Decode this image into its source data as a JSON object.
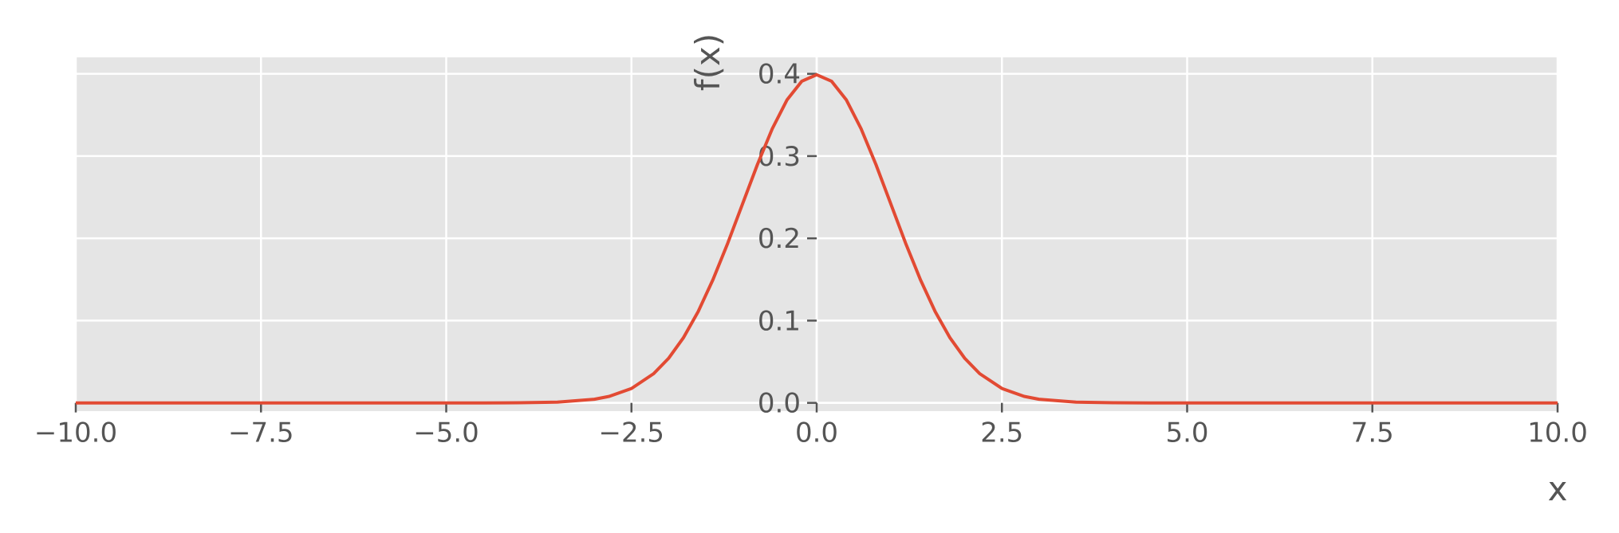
{
  "chart_data": {
    "type": "line",
    "title": "",
    "xlabel": "x",
    "ylabel": "f(x)",
    "xlim": [
      -10,
      10
    ],
    "ylim": [
      -0.01,
      0.42
    ],
    "xticks": [
      -10,
      -7.5,
      -5,
      -2.5,
      0,
      2.5,
      5,
      7.5,
      10
    ],
    "xtick_labels": [
      "−10.0",
      "−7.5",
      "−5.0",
      "−2.5",
      "0.0",
      "2.5",
      "5.0",
      "7.5",
      "10.0"
    ],
    "yticks": [
      0,
      0.1,
      0.2,
      0.3,
      0.4
    ],
    "ytick_labels": [
      "0.0",
      "0.1",
      "0.2",
      "0.3",
      "0.4"
    ],
    "grid": true,
    "spines": "centered at zero",
    "colors": {
      "plot_background": "#e5e5e5",
      "grid": "#ffffff",
      "line": "#e24a33",
      "text": "#555555"
    },
    "series": [
      {
        "x": [
          -10,
          -9,
          -8,
          -7,
          -6,
          -5,
          -4.5,
          -4,
          -3.5,
          -3,
          -2.8,
          -2.5,
          -2.2,
          -2.0,
          -1.8,
          -1.6,
          -1.4,
          -1.2,
          -1.0,
          -0.8,
          -0.6,
          -0.4,
          -0.2,
          0,
          0.2,
          0.4,
          0.6,
          0.8,
          1.0,
          1.2,
          1.4,
          1.6,
          1.8,
          2.0,
          2.2,
          2.5,
          2.8,
          3,
          3.5,
          4,
          4.5,
          5,
          6,
          7,
          8,
          9,
          10
        ],
        "y": [
          0,
          0,
          0,
          0,
          0,
          0,
          1.6e-05,
          0.000134,
          0.000873,
          0.00443,
          0.0079,
          0.0175,
          0.0355,
          0.054,
          0.079,
          0.111,
          0.1497,
          0.1942,
          0.242,
          0.2897,
          0.3332,
          0.3683,
          0.391,
          0.3989,
          0.391,
          0.3683,
          0.3332,
          0.2897,
          0.242,
          0.1942,
          0.1497,
          0.111,
          0.079,
          0.054,
          0.0355,
          0.0175,
          0.0079,
          0.00443,
          0.000873,
          0.000134,
          1.6e-05,
          0,
          0,
          0,
          0,
          0,
          0
        ]
      }
    ]
  }
}
